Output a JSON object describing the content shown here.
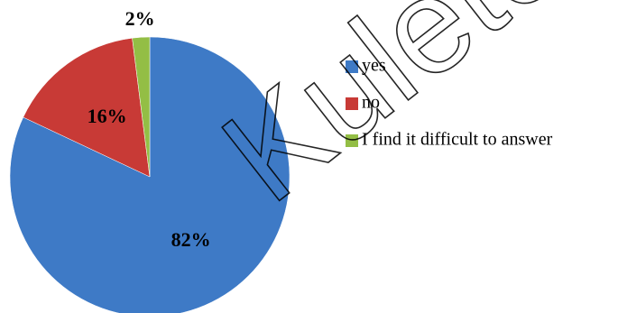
{
  "chart_data": {
    "type": "pie",
    "categories": [
      "yes",
      "no",
      "I find it difficult to answer"
    ],
    "values": [
      82,
      16,
      2
    ],
    "labels": [
      "82%",
      "16%",
      "2%"
    ],
    "colors": [
      "#3e7ac6",
      "#c83a36",
      "#93be45"
    ],
    "start_angle_deg": 0,
    "direction": "clockwise",
    "legend_placement": "right",
    "title": ""
  },
  "watermark": {
    "text": "Kuletov Uni",
    "opacity": 0.85
  }
}
